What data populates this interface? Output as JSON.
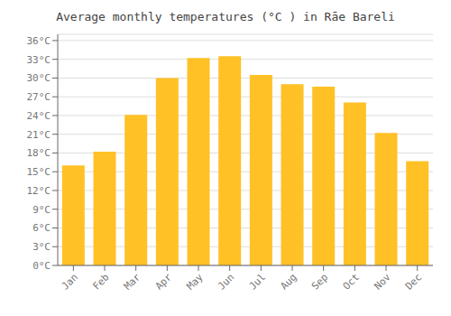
{
  "chart_data": {
    "type": "bar",
    "title": "Average monthly temperatures (°C ) in Rāe Bareli",
    "categories": [
      "Jan",
      "Feb",
      "Mar",
      "Apr",
      "May",
      "Jun",
      "Jul",
      "Aug",
      "Sep",
      "Oct",
      "Nov",
      "Dec"
    ],
    "values": [
      16.0,
      18.2,
      24.1,
      30.0,
      33.2,
      33.5,
      30.5,
      29.0,
      28.6,
      26.1,
      21.2,
      16.7
    ],
    "color": "#FFC125",
    "ylim": [
      0,
      37
    ],
    "yticks": [
      {
        "value": 0,
        "label": "0°C"
      },
      {
        "value": 3,
        "label": "3°C"
      },
      {
        "value": 6,
        "label": "6°C"
      },
      {
        "value": 9,
        "label": "9°C"
      },
      {
        "value": 12,
        "label": "12°C"
      },
      {
        "value": 15,
        "label": "15°C"
      },
      {
        "value": 18,
        "label": "18°C"
      },
      {
        "value": 21,
        "label": "21°C"
      },
      {
        "value": 24,
        "label": "24°C"
      },
      {
        "value": 27,
        "label": "27°C"
      },
      {
        "value": 30,
        "label": "30°C"
      },
      {
        "value": 33,
        "label": "33°C"
      },
      {
        "value": 36,
        "label": "36°C"
      }
    ],
    "grid": true
  }
}
